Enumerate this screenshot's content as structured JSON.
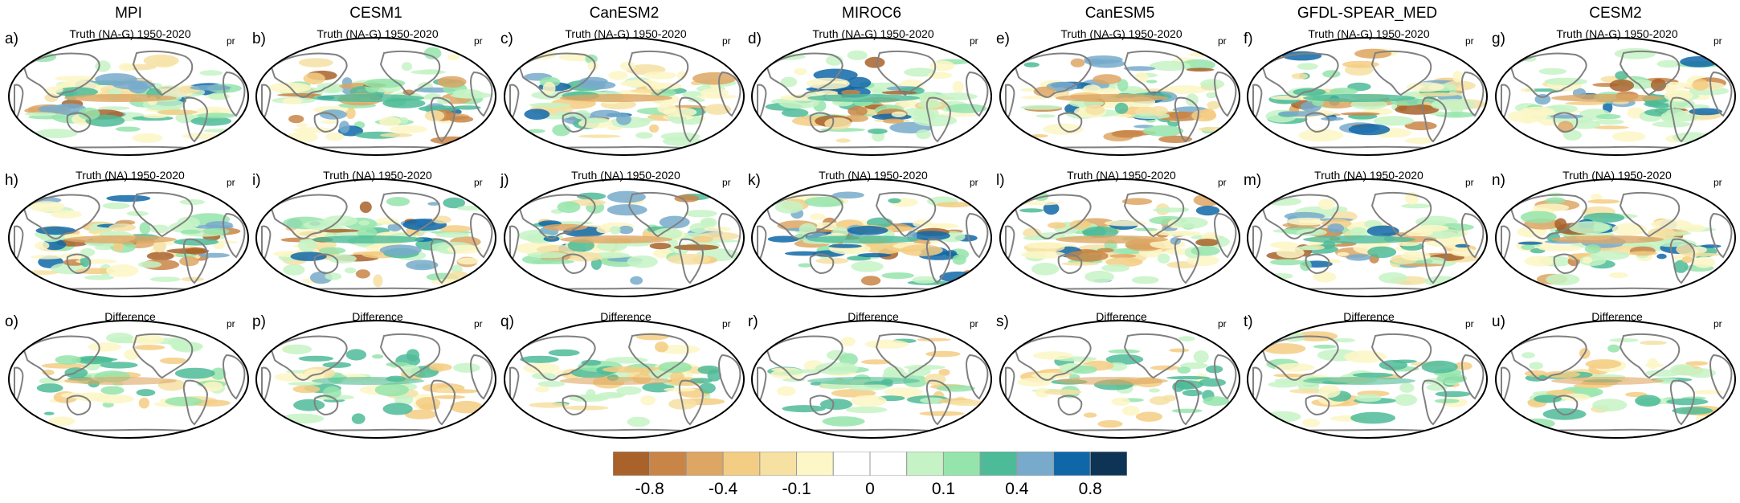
{
  "models": [
    "MPI",
    "CESM1",
    "CanESM2",
    "MIROC6",
    "CanESM5",
    "GFDL-SPEAR_MED",
    "CESM2"
  ],
  "row_titles": [
    "Truth (NA-G) 1950-2020",
    "Truth (NA) 1950-2020",
    "Difference"
  ],
  "variable": "pr",
  "letters": [
    [
      "a)",
      "b)",
      "c)",
      "d)",
      "e)",
      "f)",
      "g)"
    ],
    [
      "h)",
      "i)",
      "j)",
      "k)",
      "l)",
      "m)",
      "n)"
    ],
    [
      "o)",
      "p)",
      "q)",
      "r)",
      "s)",
      "t)",
      "u)"
    ]
  ],
  "colorbar": {
    "colors": [
      "#a8622a",
      "#c88547",
      "#dda664",
      "#f3cd83",
      "#f6e1a3",
      "#fdf6c6",
      "#ffffff",
      "#ffffff",
      "#c6f3c6",
      "#95e4ab",
      "#4ebb98",
      "#77aacb",
      "#0f67a8",
      "#0d3355"
    ],
    "labels": [
      "-0.8",
      "-0.4",
      "-0.1",
      "0",
      "0.1",
      "0.4",
      "0.8"
    ]
  },
  "colors": {
    "land_outline": "#808080",
    "frame": "#000000"
  }
}
